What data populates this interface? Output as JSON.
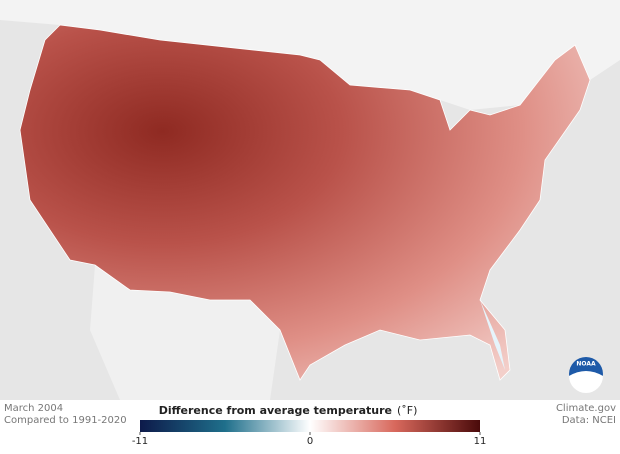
{
  "map": {
    "period": "March 2004",
    "baseline": "Compared to 1991-2020",
    "logo": "NOAA"
  },
  "legend": {
    "title": "Difference from average temperature",
    "unit": "(˚F)",
    "range": [
      -11,
      11
    ],
    "ticks": [
      -11,
      0,
      11
    ]
  },
  "footer": {
    "source": "Climate.gov",
    "data": "Data: NCEI"
  }
}
